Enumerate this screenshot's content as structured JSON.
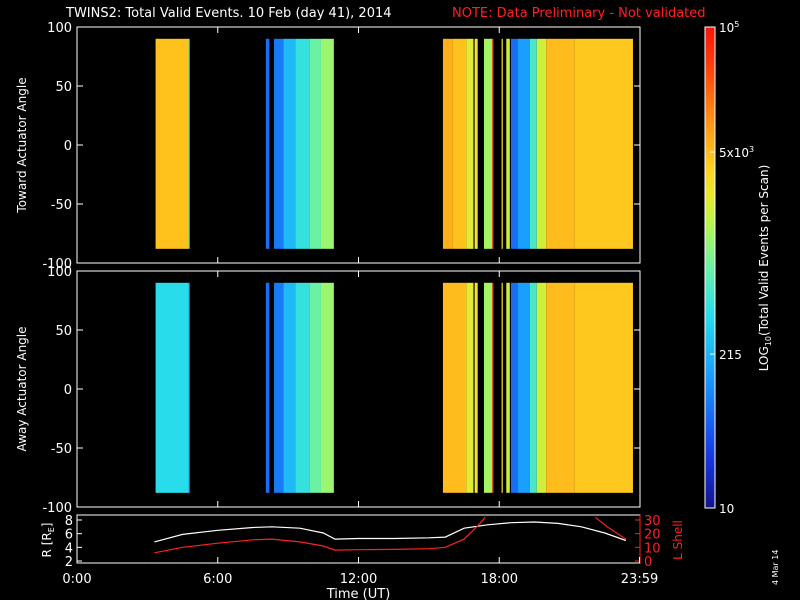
{
  "header": {
    "title": "TWINS2: Total Valid Events. 10 Feb (day  41), 2014",
    "note": "NOTE: Data Preliminary - Not validated"
  },
  "stamp": "4 Mar 14",
  "colors": {
    "background": "#000000",
    "note": "#ff2020",
    "l_shell_line": "#ff2020",
    "r_line": "#ffffff",
    "colormap": "rainbow (blue to red)"
  },
  "chart_data": [
    {
      "type": "heatmap",
      "panel": "top",
      "ylabel": "Toward Actuator Angle",
      "ylim": [
        -100,
        100
      ],
      "yticks": [
        "100",
        "50",
        "0",
        "-50",
        "-100"
      ],
      "xlim": [
        0,
        24
      ],
      "segments": [
        {
          "start": 3.35,
          "end": 4.75,
          "level": 0.73
        },
        {
          "start": 4.75,
          "end": 4.8,
          "level": 0.55
        },
        {
          "start": 8.05,
          "end": 8.2,
          "level": 0.2
        },
        {
          "start": 8.4,
          "end": 8.8,
          "level": 0.22
        },
        {
          "start": 8.8,
          "end": 9.3,
          "level": 0.33
        },
        {
          "start": 9.3,
          "end": 9.9,
          "level": 0.42
        },
        {
          "start": 9.9,
          "end": 10.4,
          "level": 0.5
        },
        {
          "start": 10.4,
          "end": 10.95,
          "level": 0.56
        },
        {
          "start": 15.6,
          "end": 16.0,
          "level": 0.76
        },
        {
          "start": 16.0,
          "end": 16.6,
          "level": 0.73
        },
        {
          "start": 16.6,
          "end": 16.9,
          "level": 0.64
        },
        {
          "start": 16.95,
          "end": 17.08,
          "level": 0.67
        },
        {
          "start": 17.35,
          "end": 17.7,
          "level": 0.57
        },
        {
          "start": 17.7,
          "end": 17.75,
          "level": 0.9
        },
        {
          "start": 18.1,
          "end": 18.15,
          "level": 0.68
        },
        {
          "start": 18.3,
          "end": 18.45,
          "level": 0.62
        },
        {
          "start": 18.5,
          "end": 18.8,
          "level": 0.2
        },
        {
          "start": 18.8,
          "end": 19.3,
          "level": 0.28
        },
        {
          "start": 19.3,
          "end": 19.6,
          "level": 0.45
        },
        {
          "start": 19.6,
          "end": 20.0,
          "level": 0.62
        },
        {
          "start": 20.0,
          "end": 21.2,
          "level": 0.74
        },
        {
          "start": 21.2,
          "end": 23.7,
          "level": 0.72
        }
      ]
    },
    {
      "type": "heatmap",
      "panel": "middle",
      "ylabel": "Away Actuator Angle",
      "ylim": [
        -100,
        100
      ],
      "yticks": [
        "100",
        "50",
        "0",
        "-50",
        "-100"
      ],
      "xlim": [
        0,
        24
      ],
      "segments": [
        {
          "start": 3.35,
          "end": 4.75,
          "level": 0.4
        },
        {
          "start": 4.75,
          "end": 4.8,
          "level": 0.35
        },
        {
          "start": 8.05,
          "end": 8.2,
          "level": 0.2
        },
        {
          "start": 8.4,
          "end": 8.8,
          "level": 0.22
        },
        {
          "start": 8.8,
          "end": 9.3,
          "level": 0.33
        },
        {
          "start": 9.3,
          "end": 9.9,
          "level": 0.42
        },
        {
          "start": 9.9,
          "end": 10.4,
          "level": 0.5
        },
        {
          "start": 10.4,
          "end": 10.95,
          "level": 0.56
        },
        {
          "start": 15.6,
          "end": 16.6,
          "level": 0.74
        },
        {
          "start": 16.6,
          "end": 16.9,
          "level": 0.64
        },
        {
          "start": 16.95,
          "end": 17.08,
          "level": 0.67
        },
        {
          "start": 17.35,
          "end": 17.7,
          "level": 0.57
        },
        {
          "start": 17.7,
          "end": 17.75,
          "level": 0.9
        },
        {
          "start": 18.1,
          "end": 18.15,
          "level": 0.68
        },
        {
          "start": 18.3,
          "end": 18.45,
          "level": 0.62
        },
        {
          "start": 18.5,
          "end": 18.8,
          "level": 0.2
        },
        {
          "start": 18.8,
          "end": 19.3,
          "level": 0.28
        },
        {
          "start": 19.3,
          "end": 19.6,
          "level": 0.45
        },
        {
          "start": 19.6,
          "end": 20.0,
          "level": 0.62
        },
        {
          "start": 20.0,
          "end": 21.2,
          "level": 0.74
        },
        {
          "start": 21.2,
          "end": 23.7,
          "level": 0.72
        }
      ]
    },
    {
      "type": "line",
      "panel": "bottom",
      "xlabel": "Time (UT)",
      "xlim": [
        0,
        24
      ],
      "xticks": [
        "0:00",
        "6:00",
        "12:00",
        "18:00",
        "23:59"
      ],
      "ylabel_left": "R [R",
      "ylabel_left_sub": "E",
      "ylabel_left_close": "]",
      "ylim_left": [
        2,
        8
      ],
      "yticks_left": [
        "8",
        "6",
        "4",
        "2"
      ],
      "ylabel_right": "L Shell",
      "ylim_right": [
        0,
        30
      ],
      "yticks_right": [
        "30",
        "20",
        "10",
        "0"
      ],
      "series": [
        {
          "name": "R",
          "axis": "left",
          "color": "#ffffff",
          "x": [
            3.3,
            4.5,
            6,
            7.5,
            8.3,
            9.5,
            10.5,
            11,
            12,
            13.5,
            15,
            15.7,
            16.5,
            17.5,
            18.5,
            19.5,
            20.5,
            21.5,
            22.5,
            23.4
          ],
          "y": [
            4.8,
            5.9,
            6.5,
            6.9,
            7.0,
            6.8,
            6.1,
            5.2,
            5.3,
            5.3,
            5.4,
            5.5,
            6.8,
            7.3,
            7.6,
            7.7,
            7.5,
            7.0,
            6.1,
            5.0
          ]
        },
        {
          "name": "L Shell",
          "axis": "right",
          "color": "#ff2020",
          "x": [
            3.3,
            4.5,
            6,
            7.5,
            8.3,
            9.5,
            10.5,
            11,
            12,
            13.5,
            15,
            15.7,
            16.5,
            17.1,
            17.4
          ],
          "y": [
            6,
            10,
            13,
            15.5,
            16,
            14,
            11,
            8,
            8.3,
            8.5,
            9,
            10,
            16,
            26,
            32
          ]
        },
        {
          "name": "L Shell tail",
          "axis": "right",
          "color": "#ff2020",
          "x": [
            22.1,
            22.6,
            23.4
          ],
          "y": [
            32,
            25,
            16
          ]
        }
      ]
    }
  ],
  "colorbar": {
    "label": "LOG",
    "label_sub": "10",
    "label_rest": "(Total Valid  Events per Scan)",
    "ticks": [
      {
        "base": "10",
        "exp": "5",
        "level": 1.0
      },
      {
        "base": "5x10",
        "exp": "3",
        "level": 0.74
      },
      {
        "base": "215",
        "exp": "",
        "level": 0.32
      },
      {
        "base": "10",
        "exp": "",
        "level": 0.0
      }
    ]
  }
}
